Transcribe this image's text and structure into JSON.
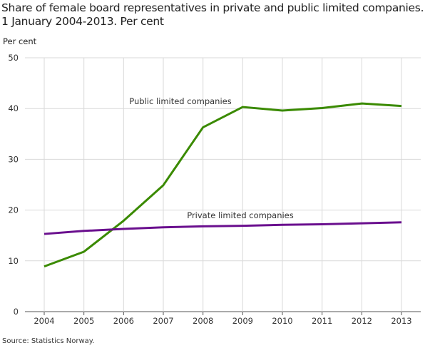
{
  "chart_data": {
    "type": "line",
    "title": "Share of female board representatives in private and public limited companies. 1 January 2004-2013. Per cent",
    "title_lines": [
      "Share of female board representatives in private and public limited companies.",
      "1 January 2004-2013. Per cent"
    ],
    "ylabel": "Per cent",
    "xlabel": "",
    "x": [
      "2004",
      "2005",
      "2006",
      "2007",
      "2008",
      "2009",
      "2010",
      "2011",
      "2012",
      "2013"
    ],
    "ylim": [
      0,
      50
    ],
    "yticks": [
      0,
      10,
      20,
      30,
      40,
      50
    ],
    "grid": true,
    "series": [
      {
        "name": "Public limited companies",
        "color": "#3a8a00",
        "values": [
          8.9,
          11.8,
          17.9,
          24.9,
          36.3,
          40.3,
          39.6,
          40.1,
          41.0,
          40.5
        ]
      },
      {
        "name": "Private limited companies",
        "color": "#6a0f8e",
        "values": [
          15.3,
          15.9,
          16.3,
          16.6,
          16.8,
          16.9,
          17.1,
          17.2,
          17.4,
          17.6
        ]
      }
    ],
    "source": "Source: Statistics Norway."
  }
}
